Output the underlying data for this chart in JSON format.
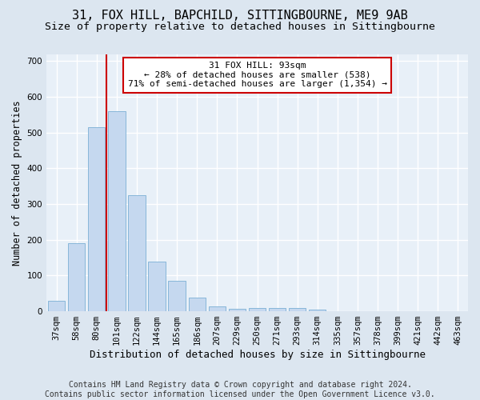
{
  "title": "31, FOX HILL, BAPCHILD, SITTINGBOURNE, ME9 9AB",
  "subtitle": "Size of property relative to detached houses in Sittingbourne",
  "xlabel": "Distribution of detached houses by size in Sittingbourne",
  "ylabel": "Number of detached properties",
  "categories": [
    "37sqm",
    "58sqm",
    "80sqm",
    "101sqm",
    "122sqm",
    "144sqm",
    "165sqm",
    "186sqm",
    "207sqm",
    "229sqm",
    "250sqm",
    "271sqm",
    "293sqm",
    "314sqm",
    "335sqm",
    "357sqm",
    "378sqm",
    "399sqm",
    "421sqm",
    "442sqm",
    "463sqm"
  ],
  "values": [
    30,
    190,
    515,
    560,
    325,
    140,
    85,
    38,
    13,
    8,
    9,
    9,
    10,
    5,
    0,
    0,
    0,
    0,
    0,
    0,
    0
  ],
  "bar_color": "#c5d8ef",
  "bar_edge_color": "#7aafd4",
  "vline_x": 2.5,
  "vline_color": "#cc0000",
  "annotation_text": "31 FOX HILL: 93sqm\n← 28% of detached houses are smaller (538)\n71% of semi-detached houses are larger (1,354) →",
  "annotation_box_color": "white",
  "annotation_box_edge_color": "#cc0000",
  "ylim": [
    0,
    720
  ],
  "yticks": [
    0,
    100,
    200,
    300,
    400,
    500,
    600,
    700
  ],
  "footer": "Contains HM Land Registry data © Crown copyright and database right 2024.\nContains public sector information licensed under the Open Government Licence v3.0.",
  "background_color": "#dce6f0",
  "plot_background_color": "#e8f0f8",
  "grid_color": "white",
  "title_fontsize": 11,
  "subtitle_fontsize": 9.5,
  "xlabel_fontsize": 9,
  "ylabel_fontsize": 8.5,
  "tick_fontsize": 7.5,
  "footer_fontsize": 7,
  "annotation_fontsize": 8
}
